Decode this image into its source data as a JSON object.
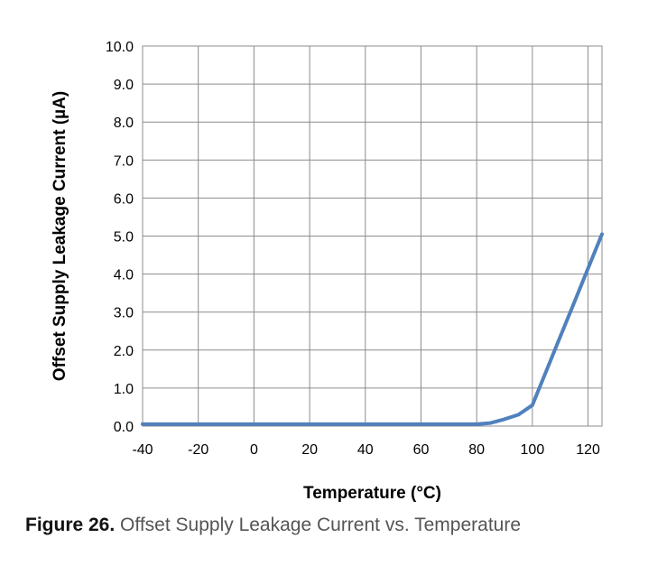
{
  "chart_data": {
    "type": "line",
    "xlabel": "Temperature (°C)",
    "ylabel": "Offset Supply Leakage Current (µA)",
    "xlim": [
      -40,
      125
    ],
    "ylim": [
      0,
      10
    ],
    "x_ticks": [
      "-40",
      "-20",
      "0",
      "20",
      "40",
      "60",
      "80",
      "100",
      "120"
    ],
    "y_ticks": [
      "0.0",
      "1.0",
      "2.0",
      "3.0",
      "4.0",
      "5.0",
      "6.0",
      "7.0",
      "8.0",
      "9.0",
      "10.0"
    ],
    "grid": true,
    "series": [
      {
        "color": "#4f81bd",
        "x": [
          -40,
          -20,
          0,
          20,
          40,
          60,
          80,
          85,
          90,
          95,
          100,
          105,
          110,
          115,
          120,
          125
        ],
        "y": [
          0.05,
          0.05,
          0.05,
          0.05,
          0.05,
          0.05,
          0.05,
          0.08,
          0.18,
          0.3,
          0.55,
          1.45,
          2.35,
          3.25,
          4.15,
          5.05
        ]
      }
    ]
  },
  "caption": {
    "figure_label": "Figure 26.",
    "text": "Offset Supply Leakage Current vs. Temperature"
  }
}
